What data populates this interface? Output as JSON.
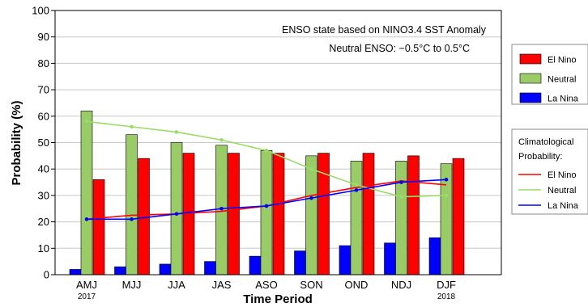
{
  "chart_data": {
    "type": "bar",
    "title": "",
    "xlabel": "Time Period",
    "ylabel": "Probability (%)",
    "ylim": [
      0,
      100
    ],
    "yticks": [
      0,
      10,
      20,
      30,
      40,
      50,
      60,
      70,
      80,
      90,
      100
    ],
    "grid": "horizontal",
    "categories": [
      "AMJ",
      "MJJ",
      "JJA",
      "JAS",
      "ASO",
      "SON",
      "OND",
      "NDJ",
      "DJF"
    ],
    "year_labels": [
      {
        "category": "AMJ",
        "text": "2017"
      },
      {
        "category": "DJF",
        "text": "2018"
      }
    ],
    "series": [
      {
        "name": "La Nina",
        "color": "#0000ff",
        "values": [
          2,
          3,
          4,
          5,
          7,
          9,
          11,
          12,
          14
        ]
      },
      {
        "name": "Neutral",
        "color": "#99cc66",
        "values": [
          62,
          53,
          50,
          49,
          47,
          45,
          43,
          43,
          42
        ]
      },
      {
        "name": "El Nino",
        "color": "#ff0000",
        "values": [
          36,
          44,
          46,
          46,
          46,
          46,
          46,
          45,
          44
        ]
      }
    ],
    "climatology": {
      "label_line1": "Climatological",
      "label_line2": "Probability:",
      "lines": [
        {
          "name": "El Nino",
          "color": "#ff0000",
          "values": [
            21,
            22.5,
            23,
            24,
            26,
            30,
            33,
            35.5,
            34
          ],
          "markers": false
        },
        {
          "name": "Neutral",
          "color": "#99dd66",
          "values": [
            58,
            56,
            54,
            51,
            47,
            40,
            34,
            29.5,
            30
          ],
          "markers": true
        },
        {
          "name": "La Nina",
          "color": "#0000ff",
          "values": [
            21,
            21,
            23,
            25,
            26,
            29,
            32,
            35,
            36
          ],
          "markers": true
        }
      ]
    },
    "annotations": [
      "ENSO state based on NINO3.4 SST Anomaly",
      "Neutral ENSO: −0.5°C to 0.5°C"
    ],
    "legend_placement": "right",
    "bar_legend_order": [
      "El Nino",
      "Neutral",
      "La Nina"
    ],
    "clim_legend_order": [
      "El Nino",
      "Neutral",
      "La Nina"
    ]
  }
}
